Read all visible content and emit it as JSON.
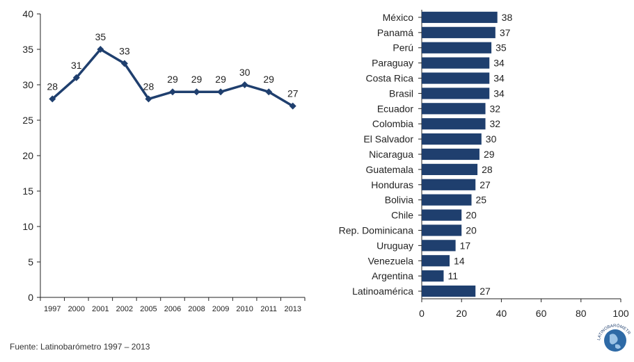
{
  "source": "Fuente: Latinobarómetro 1997 – 2013",
  "colors": {
    "series": "#1f3f6e",
    "axis": "#222222"
  },
  "logo_text": "LATINOBARÓMETRO",
  "chart_data": [
    {
      "type": "line",
      "x": [
        "1997",
        "2000",
        "2001",
        "2002",
        "2005",
        "2006",
        "2008",
        "2009",
        "2010",
        "2011",
        "2013"
      ],
      "values": [
        28,
        31,
        35,
        33,
        28,
        29,
        29,
        29,
        30,
        29,
        27
      ],
      "ylim": [
        0,
        40
      ],
      "yticks": [
        0,
        5,
        10,
        15,
        20,
        25,
        30,
        35,
        40
      ],
      "title": "",
      "xlabel": "",
      "ylabel": "",
      "grid": false,
      "data_labels": true
    },
    {
      "type": "bar",
      "orientation": "horizontal",
      "categories": [
        "México",
        "Panamá",
        "Perú",
        "Paraguay",
        "Costa Rica",
        "Brasil",
        "Ecuador",
        "Colombia",
        "El Salvador",
        "Nicaragua",
        "Guatemala",
        "Honduras",
        "Bolivia",
        "Chile",
        "Rep. Dominicana",
        "Uruguay",
        "Venezuela",
        "Argentina",
        "Latinoamérica"
      ],
      "values": [
        38,
        37,
        35,
        34,
        34,
        34,
        32,
        32,
        30,
        29,
        28,
        27,
        25,
        20,
        20,
        17,
        14,
        11,
        27
      ],
      "xlim": [
        0,
        100
      ],
      "xticks": [
        0,
        20,
        40,
        60,
        80,
        100
      ],
      "title": "",
      "xlabel": "",
      "ylabel": "",
      "grid": false,
      "data_labels": true
    }
  ]
}
